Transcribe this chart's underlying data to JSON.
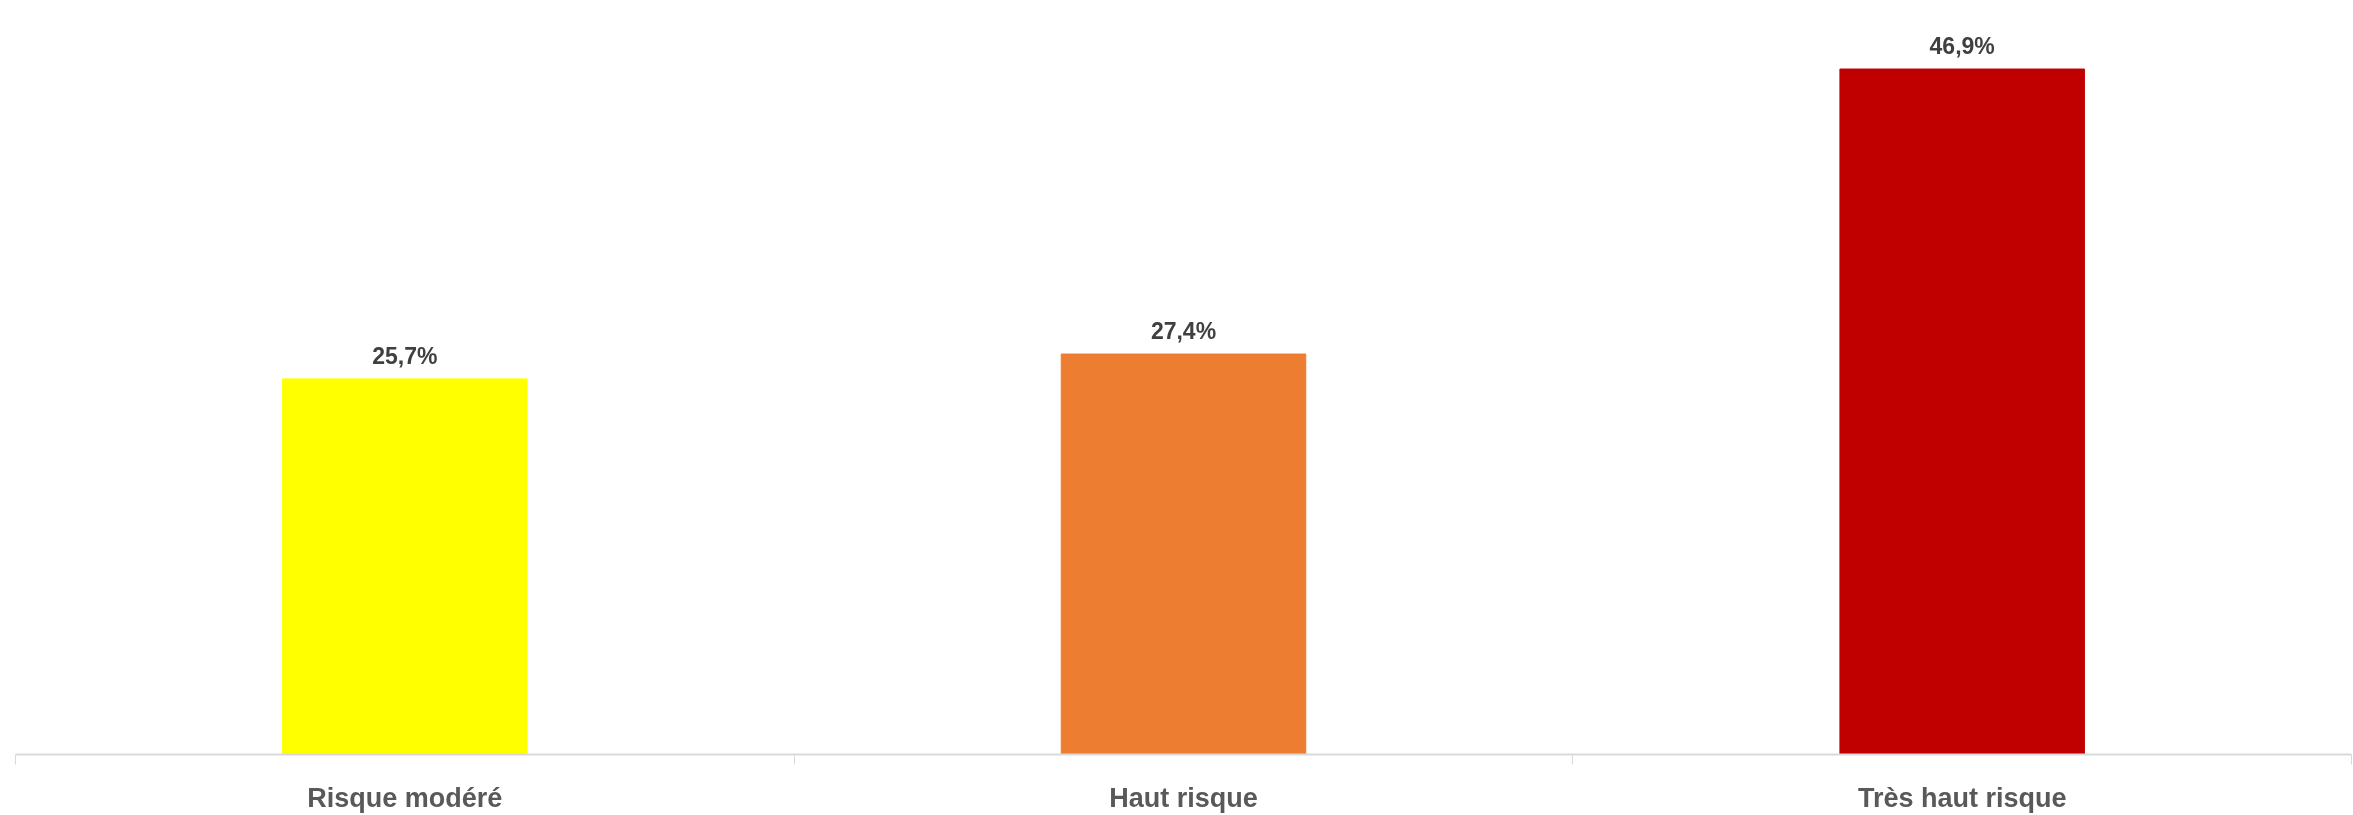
{
  "chart_data": {
    "type": "bar",
    "categories": [
      "Risque modéré",
      "Haut risque",
      "Très haut risque"
    ],
    "values": [
      25.7,
      27.4,
      46.9
    ],
    "colors": [
      "#ffff00",
      "#ed7d31",
      "#c00000"
    ],
    "value_labels": [
      "25,7%",
      "27,4%",
      "46,9%"
    ],
    "grid": false,
    "tick_labels": "x"
  }
}
